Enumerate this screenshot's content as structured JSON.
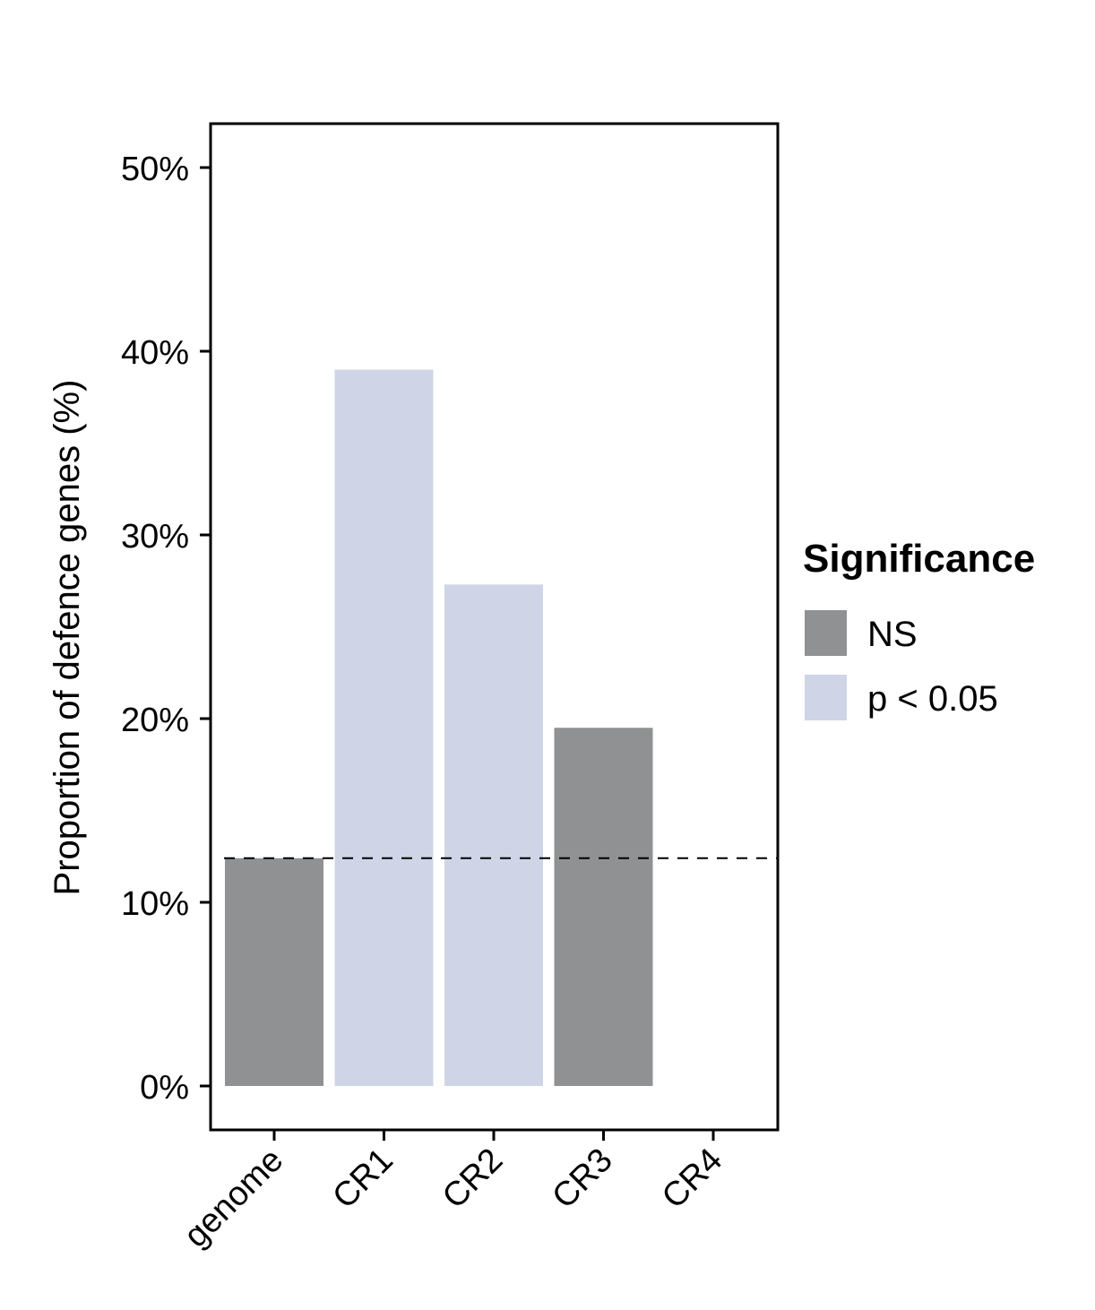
{
  "chart_data": {
    "type": "bar",
    "title": "",
    "xlabel": "",
    "ylabel": "Proportion of defence genes (%)",
    "categories": [
      "genome",
      "CR1",
      "CR2",
      "CR3",
      "CR4"
    ],
    "values": [
      12.4,
      39.0,
      27.3,
      19.5,
      0
    ],
    "significance": [
      "NS",
      "p < 0.05",
      "p < 0.05",
      "NS",
      "NS"
    ],
    "ylim": [
      -2.5,
      52.4
    ],
    "yticks": [
      0,
      10,
      20,
      30,
      40,
      50
    ],
    "ytick_labels": [
      "0%",
      "10%",
      "20%",
      "30%",
      "40%",
      "50%"
    ],
    "reference_line": {
      "value": 12.4,
      "style": "dashed"
    },
    "grid": false,
    "legend": {
      "title": "Significance",
      "placement": "right",
      "entries": [
        {
          "label": "NS",
          "color": "#909192"
        },
        {
          "label": "p < 0.05",
          "color": "#cfd5e6"
        }
      ]
    }
  }
}
